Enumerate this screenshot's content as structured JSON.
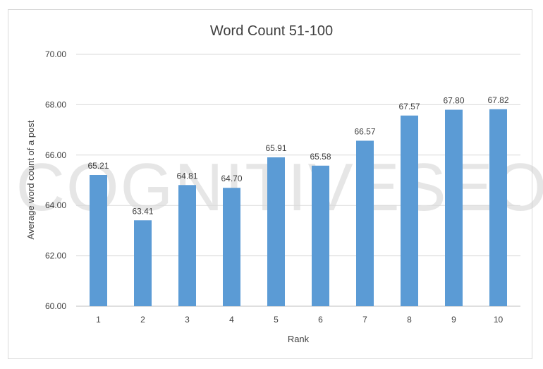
{
  "chart_data": {
    "type": "bar",
    "title": "Word Count 51-100",
    "xlabel": "Rank",
    "ylabel": "Average word count of a post",
    "categories": [
      "1",
      "2",
      "3",
      "4",
      "5",
      "6",
      "7",
      "8",
      "9",
      "10"
    ],
    "values": [
      65.21,
      63.41,
      64.81,
      64.7,
      65.91,
      65.58,
      66.57,
      67.57,
      67.8,
      67.82
    ],
    "data_labels": [
      "65.21",
      "63.41",
      "64.81",
      "64.70",
      "65.91",
      "65.58",
      "66.57",
      "67.57",
      "67.80",
      "67.82"
    ],
    "y_ticks": [
      "60.00",
      "62.00",
      "64.00",
      "66.00",
      "68.00",
      "70.00"
    ],
    "y_tick_values": [
      60,
      62,
      64,
      66,
      68,
      70
    ],
    "ylim": [
      60,
      70
    ],
    "grid": true,
    "legend": "none",
    "bar_color": "#5b9bd5",
    "watermark": "COGNITIVESEO"
  }
}
